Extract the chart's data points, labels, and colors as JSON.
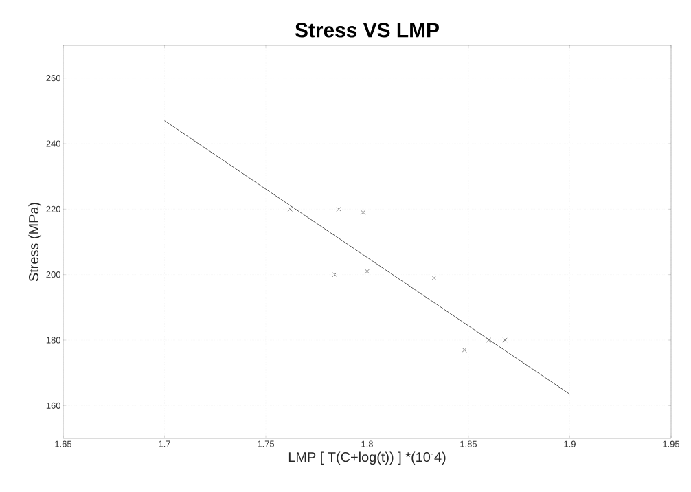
{
  "chart_data": {
    "type": "scatter",
    "title": "Stress VS LMP",
    "xlabel": "LMP [ T(C+log(t)) ] *(10$^{-}$4)",
    "ylabel": "Stress (MPa)",
    "xlim": [
      1.65,
      1.95
    ],
    "xticks": [
      1.65,
      1.7,
      1.75,
      1.8,
      1.85,
      1.9,
      1.95
    ],
    "ylim": [
      150,
      270
    ],
    "yticks": [
      160,
      180,
      200,
      220,
      240,
      260
    ],
    "grid": true,
    "series": [
      {
        "marker": "cross",
        "color": "#666666",
        "x": [
          1.762,
          1.786,
          1.798,
          1.784,
          1.8,
          1.833,
          1.848,
          1.86,
          1.868
        ],
        "values": [
          220,
          220,
          219,
          200,
          201,
          199,
          177,
          180,
          180
        ]
      },
      {
        "type": "line",
        "marker": "none",
        "color": "#555555",
        "x": [
          1.7,
          1.9
        ],
        "values": [
          247,
          163.5
        ]
      }
    ]
  }
}
